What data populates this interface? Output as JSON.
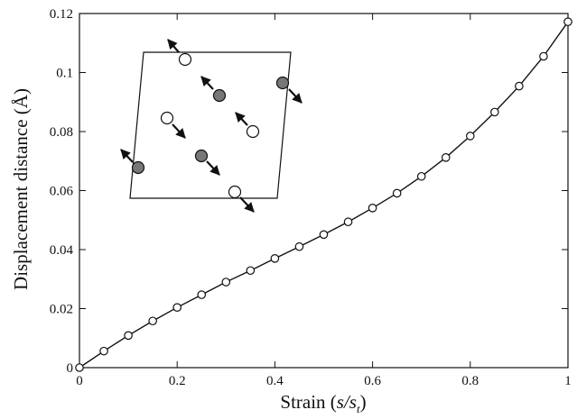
{
  "chart_data": {
    "type": "line",
    "title": "",
    "xlabel": {
      "prefix": "Strain (",
      "var": "s/s",
      "sub": "t",
      "suffix": ")"
    },
    "ylabel": "Displacement distance (Å)",
    "xlim": [
      0,
      1
    ],
    "ylim": [
      0,
      0.12
    ],
    "x_ticks": [
      0,
      0.2,
      0.4,
      0.6,
      0.8,
      1
    ],
    "x_tick_labels": [
      "0",
      "0.2",
      "0.4",
      "0.6",
      "0.8",
      "1"
    ],
    "y_ticks": [
      0,
      0.02,
      0.04,
      0.06,
      0.08,
      0.1,
      0.12
    ],
    "y_tick_labels": [
      "0",
      "0.02",
      "0.04",
      "0.06",
      "0.08",
      "0.1",
      "0.12"
    ],
    "grid": false,
    "series": [
      {
        "marker": "open-circle",
        "color": "#111111",
        "x": [
          0,
          0.05,
          0.1,
          0.15,
          0.2,
          0.25,
          0.3,
          0.35,
          0.4,
          0.45,
          0.5,
          0.55,
          0.6,
          0.65,
          0.7,
          0.75,
          0.8,
          0.85,
          0.9,
          0.95,
          1.0
        ],
        "y": [
          0,
          0.0056,
          0.0109,
          0.0158,
          0.0204,
          0.0247,
          0.029,
          0.0329,
          0.037,
          0.041,
          0.0451,
          0.0494,
          0.0541,
          0.0591,
          0.0648,
          0.0712,
          0.0785,
          0.0866,
          0.0954,
          0.1055,
          0.1172
        ]
      }
    ],
    "inset": {
      "description": "atomic displacement pattern in a parallelogram cell",
      "filled_atom_color": "#777777",
      "open_atom_color": "#ffffff"
    }
  }
}
